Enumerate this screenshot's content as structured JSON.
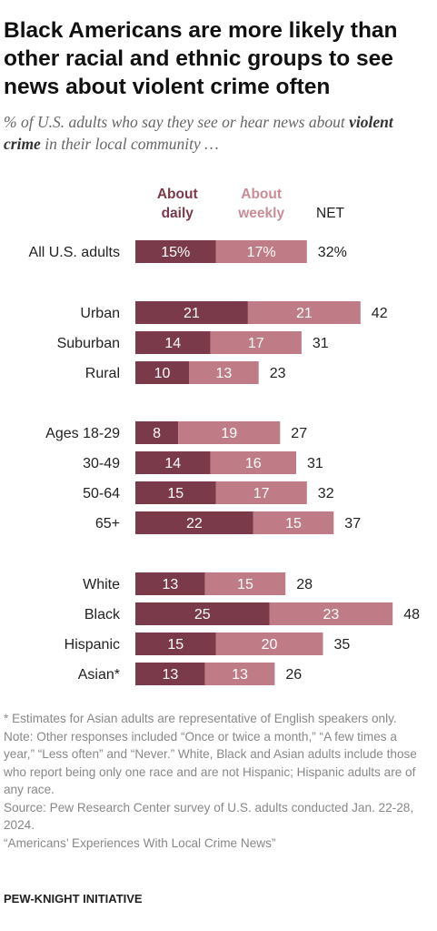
{
  "title": "Black Americans are more likely than other racial and ethnic groups to see news about violent crime often",
  "subtitle_pre": "% of U.S. adults who say they see or hear news about ",
  "subtitle_bold": "violent crime",
  "subtitle_post": " in their local community …",
  "colors": {
    "daily": "#7b3a4a",
    "weekly": "#c07c86",
    "daily_label": "#7b3a4a",
    "weekly_label": "#c98c95"
  },
  "chart_data": {
    "type": "bar",
    "orientation": "horizontal",
    "stacked": true,
    "legend": [
      "About daily",
      "About weekly"
    ],
    "net_header": "NET",
    "groups": [
      {
        "rows": [
          {
            "label": "All U.S. adults",
            "daily": 15,
            "weekly": 17,
            "net": 32,
            "daily_label": "15%",
            "weekly_label": "17%",
            "net_label": "32%"
          }
        ]
      },
      {
        "rows": [
          {
            "label": "Urban",
            "daily": 21,
            "weekly": 21,
            "net": 42,
            "daily_label": "21",
            "weekly_label": "21",
            "net_label": "42"
          },
          {
            "label": "Suburban",
            "daily": 14,
            "weekly": 17,
            "net": 31,
            "daily_label": "14",
            "weekly_label": "17",
            "net_label": "31"
          },
          {
            "label": "Rural",
            "daily": 10,
            "weekly": 13,
            "net": 23,
            "daily_label": "10",
            "weekly_label": "13",
            "net_label": "23"
          }
        ]
      },
      {
        "rows": [
          {
            "label": "Ages 18-29",
            "daily": 8,
            "weekly": 19,
            "net": 27,
            "daily_label": "8",
            "weekly_label": "19",
            "net_label": "27"
          },
          {
            "label": "30-49",
            "daily": 14,
            "weekly": 16,
            "net": 31,
            "daily_label": "14",
            "weekly_label": "16",
            "net_label": "31"
          },
          {
            "label": "50-64",
            "daily": 15,
            "weekly": 17,
            "net": 32,
            "daily_label": "15",
            "weekly_label": "17",
            "net_label": "32"
          },
          {
            "label": "65+",
            "daily": 22,
            "weekly": 15,
            "net": 37,
            "daily_label": "22",
            "weekly_label": "15",
            "net_label": "37"
          }
        ]
      },
      {
        "rows": [
          {
            "label": "White",
            "daily": 13,
            "weekly": 15,
            "net": 28,
            "daily_label": "13",
            "weekly_label": "15",
            "net_label": "28"
          },
          {
            "label": "Black",
            "daily": 25,
            "weekly": 23,
            "net": 48,
            "daily_label": "25",
            "weekly_label": "23",
            "net_label": "48"
          },
          {
            "label": "Hispanic",
            "daily": 15,
            "weekly": 20,
            "net": 35,
            "daily_label": "15",
            "weekly_label": "20",
            "net_label": "35"
          },
          {
            "label": "Asian*",
            "daily": 13,
            "weekly": 13,
            "net": 26,
            "daily_label": "13",
            "weekly_label": "13",
            "net_label": "26"
          }
        ]
      }
    ]
  },
  "notes": [
    "* Estimates for Asian adults are representative of English speakers only.",
    "Note: Other responses included “Once or twice a month,” “A few times a year,” “Less often” and “Never.” White, Black and Asian adults include those who report being only one race and are not Hispanic; Hispanic adults are of any race.",
    "Source: Pew Research Center survey of U.S. adults conducted Jan. 22-28, 2024.",
    "“Americans’ Experiences With Local Crime News”"
  ],
  "footer": "PEW-KNIGHT INITIATIVE"
}
